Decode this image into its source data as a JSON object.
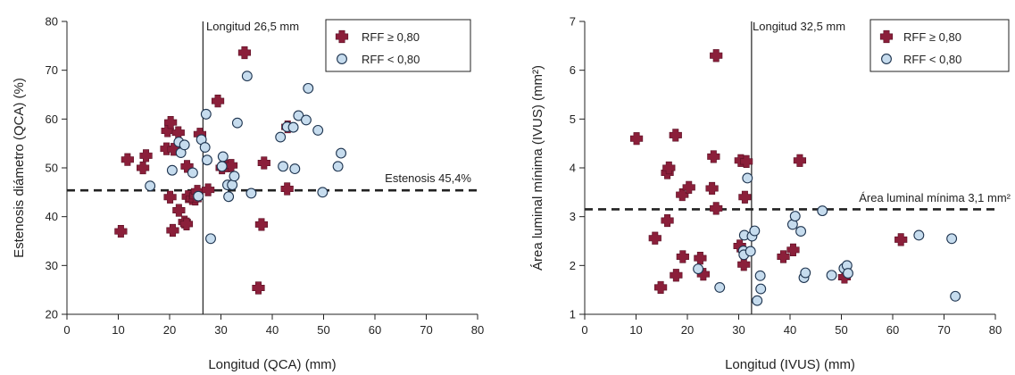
{
  "colors": {
    "marker_fill": "#8b1f3a",
    "circle_fill": "#c6dcee",
    "circle_stroke": "#1f3550",
    "axis": "#222222"
  },
  "chart_data": [
    {
      "type": "scatter",
      "xlabel": "Longitud (QCA) (mm)",
      "ylabel": "Estenosis diámetro (QCA) (%)",
      "xlim": [
        0,
        80
      ],
      "ylim": [
        20,
        80
      ],
      "xticks": [
        0,
        10,
        20,
        30,
        40,
        50,
        60,
        70,
        80
      ],
      "yticks": [
        20,
        30,
        40,
        50,
        60,
        70,
        80
      ],
      "legend_position": "top-right",
      "vline": {
        "x": 26.5,
        "label": "Longitud 26,5 mm"
      },
      "hline": {
        "y": 45.4,
        "label": "Estenosis 45,4%"
      },
      "series": [
        {
          "name": "RFF ≥ 0,80",
          "marker": "cross",
          "points": [
            [
              10.5,
              37
            ],
            [
              11.8,
              51.7
            ],
            [
              14.8,
              50
            ],
            [
              15.4,
              52.5
            ],
            [
              19.4,
              53.9
            ],
            [
              19.6,
              57.6
            ],
            [
              20.2,
              59.3
            ],
            [
              20.8,
              53.8
            ],
            [
              20.1,
              44
            ],
            [
              20.6,
              37.2
            ],
            [
              21.7,
              57.2
            ],
            [
              21.8,
              41.3
            ],
            [
              22.9,
              38.9
            ],
            [
              23.3,
              38.5
            ],
            [
              23.4,
              50.3
            ],
            [
              23.6,
              44.1
            ],
            [
              24.4,
              43.7
            ],
            [
              25,
              43.6
            ],
            [
              25.1,
              44.2
            ],
            [
              25.4,
              45.2
            ],
            [
              25.9,
              56.9
            ],
            [
              27.5,
              45.5
            ],
            [
              29.4,
              63.7
            ],
            [
              30.2,
              50
            ],
            [
              31.3,
              50.4
            ],
            [
              32,
              50.5
            ],
            [
              34.6,
              73.6
            ],
            [
              37.3,
              25.4
            ],
            [
              37.9,
              38.4
            ],
            [
              38.4,
              51
            ],
            [
              43,
              58.4
            ],
            [
              42.9,
              45.7
            ]
          ]
        },
        {
          "name": "RFF < 0,80",
          "marker": "circle",
          "points": [
            [
              16.2,
              46.3
            ],
            [
              20.5,
              49.5
            ],
            [
              21.8,
              55.3
            ],
            [
              22.2,
              53.1
            ],
            [
              22.9,
              54.7
            ],
            [
              24.5,
              49
            ],
            [
              25.6,
              44.2
            ],
            [
              26.2,
              55.8
            ],
            [
              26.9,
              54.2
            ],
            [
              27.1,
              61
            ],
            [
              27.3,
              51.6
            ],
            [
              28,
              35.5
            ],
            [
              30.2,
              50.3
            ],
            [
              30.4,
              52.3
            ],
            [
              31.3,
              46.5
            ],
            [
              31.5,
              44.1
            ],
            [
              32.2,
              46.5
            ],
            [
              32.6,
              48.3
            ],
            [
              33.2,
              59.2
            ],
            [
              35.1,
              68.8
            ],
            [
              35.9,
              44.8
            ],
            [
              41.6,
              56.3
            ],
            [
              42.1,
              50.3
            ],
            [
              42.9,
              58.4
            ],
            [
              44.1,
              58.3
            ],
            [
              44.4,
              49.8
            ],
            [
              45.1,
              60.7
            ],
            [
              46.6,
              59.8
            ],
            [
              47,
              66.3
            ],
            [
              48.9,
              57.7
            ],
            [
              49.8,
              45
            ],
            [
              52.8,
              50.3
            ],
            [
              53.4,
              53
            ]
          ]
        }
      ]
    },
    {
      "type": "scatter",
      "xlabel": "Longitud (IVUS) (mm)",
      "ylabel": "Área luminal mínima (IVUS) (mm²)",
      "xlim": [
        0,
        80
      ],
      "ylim": [
        1,
        7
      ],
      "xticks": [
        0,
        10,
        20,
        30,
        40,
        50,
        60,
        70,
        80
      ],
      "yticks": [
        1,
        2,
        3,
        4,
        5,
        6,
        7
      ],
      "legend_position": "top-right",
      "vline": {
        "x": 32.5,
        "label": "Longitud 32,5 mm"
      },
      "hline": {
        "y": 3.15,
        "label": "Área luminal mínima 3,1 mm²"
      },
      "series": [
        {
          "name": "RFF ≥ 0,80",
          "marker": "cross",
          "points": [
            [
              10.1,
              4.6
            ],
            [
              13.7,
              2.56
            ],
            [
              14.8,
              1.55
            ],
            [
              16.1,
              2.92
            ],
            [
              16.1,
              3.9
            ],
            [
              16.4,
              4
            ],
            [
              17.7,
              4.67
            ],
            [
              17.8,
              1.8
            ],
            [
              19.1,
              2.18
            ],
            [
              19,
              3.45
            ],
            [
              20.3,
              3.6
            ],
            [
              22.5,
              2.15
            ],
            [
              23.1,
              1.82
            ],
            [
              24.8,
              3.58
            ],
            [
              25.1,
              4.23
            ],
            [
              25.6,
              6.3
            ],
            [
              25.6,
              3.17
            ],
            [
              30.2,
              2.4
            ],
            [
              30.4,
              4.15
            ],
            [
              31,
              2.02
            ],
            [
              31.2,
              3.4
            ],
            [
              31.5,
              4.13
            ],
            [
              38.7,
              2.18
            ],
            [
              40.6,
              2.32
            ],
            [
              41.9,
              4.15
            ],
            [
              50.6,
              1.76
            ],
            [
              61.6,
              2.53
            ]
          ]
        },
        {
          "name": "RFF < 0,80",
          "marker": "circle",
          "points": [
            [
              22.1,
              1.93
            ],
            [
              26.3,
              1.55
            ],
            [
              30.9,
              2.3
            ],
            [
              31,
              2.22
            ],
            [
              31.1,
              2.62
            ],
            [
              31.7,
              3.79
            ],
            [
              32.3,
              2.29
            ],
            [
              32.6,
              2.6
            ],
            [
              33.1,
              2.71
            ],
            [
              33.6,
              1.28
            ],
            [
              34.2,
              1.79
            ],
            [
              34.3,
              1.52
            ],
            [
              40.5,
              2.84
            ],
            [
              41,
              3.01
            ],
            [
              42.1,
              2.7
            ],
            [
              42.7,
              1.75
            ],
            [
              43,
              1.85
            ],
            [
              46.3,
              3.12
            ],
            [
              48.1,
              1.8
            ],
            [
              50.5,
              1.94
            ],
            [
              51.1,
              2
            ],
            [
              51.3,
              1.84
            ],
            [
              65.1,
              2.62
            ],
            [
              71.5,
              2.55
            ],
            [
              72.2,
              1.37
            ]
          ]
        }
      ]
    }
  ]
}
